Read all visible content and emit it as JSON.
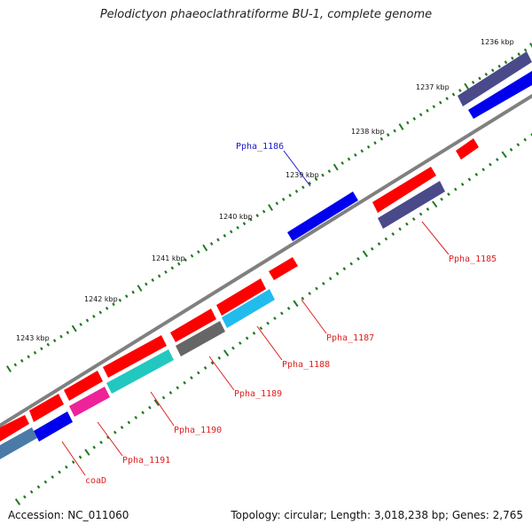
{
  "title": "Pelodictyon phaeoclathratiforme BU-1, complete genome",
  "footer": {
    "accession": "Accession: NC_011060",
    "summary": "Topology: circular; Length: 3,018,238 bp; Genes: 2,765"
  },
  "kbp_ticks": [
    "1236 kbp",
    "1237 kbp",
    "1238 kbp",
    "1239 kbp",
    "1240 kbp",
    "1241 kbp",
    "1242 kbp",
    "1243 kbp"
  ],
  "genes": [
    {
      "label": "Ppha_1185",
      "color": "#e02020"
    },
    {
      "label": "Ppha_1186",
      "color": "#1a1acc"
    },
    {
      "label": "Ppha_1187",
      "color": "#e02020"
    },
    {
      "label": "Ppha_1188",
      "color": "#e02020"
    },
    {
      "label": "Ppha_1189",
      "color": "#e02020"
    },
    {
      "label": "Ppha_1190",
      "color": "#e02020"
    },
    {
      "label": "Ppha_1191",
      "color": "#e02020"
    },
    {
      "label": "coaD",
      "color": "#e02020"
    }
  ],
  "colors": {
    "backbone": "#808080",
    "tick": "#1f7a1f",
    "cds_forward": "#ff0000",
    "gene_blue": "#0000ee",
    "slate": "#4a4a8a",
    "gray": "#666666",
    "sky": "#22bbee",
    "teal": "#22c8c0",
    "magenta": "#ee2299",
    "steel": "#4a7aa8"
  }
}
